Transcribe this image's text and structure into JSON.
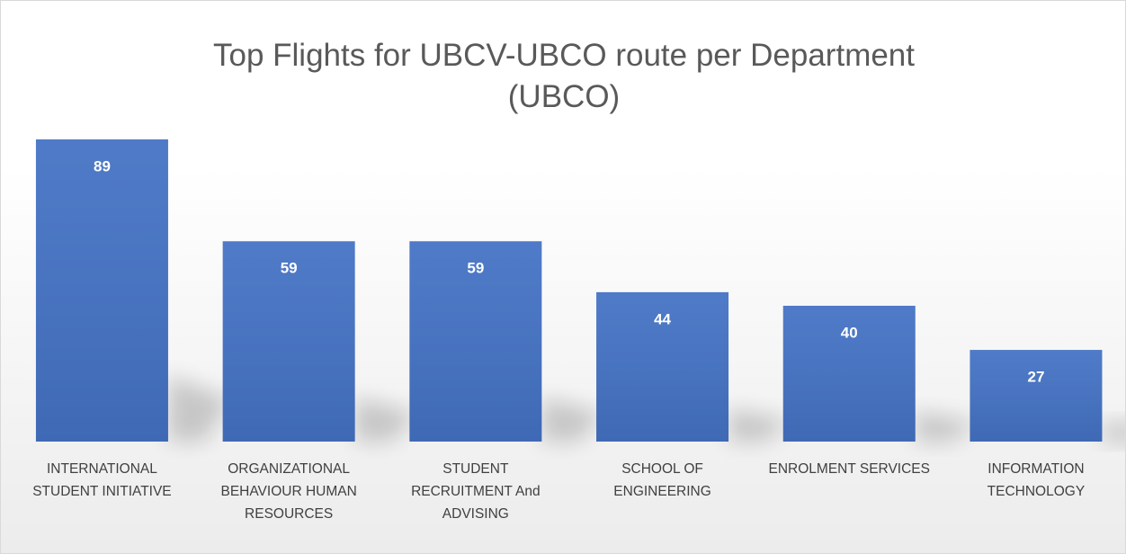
{
  "chart_data": {
    "type": "bar",
    "title": "Top Flights for UBCV-UBCO route per Department (UBCO)",
    "categories": [
      "INTERNATIONAL\nSTUDENT INITIATIVE",
      "ORGANIZATIONAL\nBEHAVIOUR HUMAN\nRESOURCES",
      "STUDENT\nRECRUITMENT And\nADVISING",
      "SCHOOL OF\nENGINEERING",
      "ENROLMENT SERVICES",
      "INFORMATION\nTECHNOLOGY"
    ],
    "values": [
      89,
      59,
      59,
      44,
      40,
      27
    ],
    "color": "#4472c4"
  }
}
